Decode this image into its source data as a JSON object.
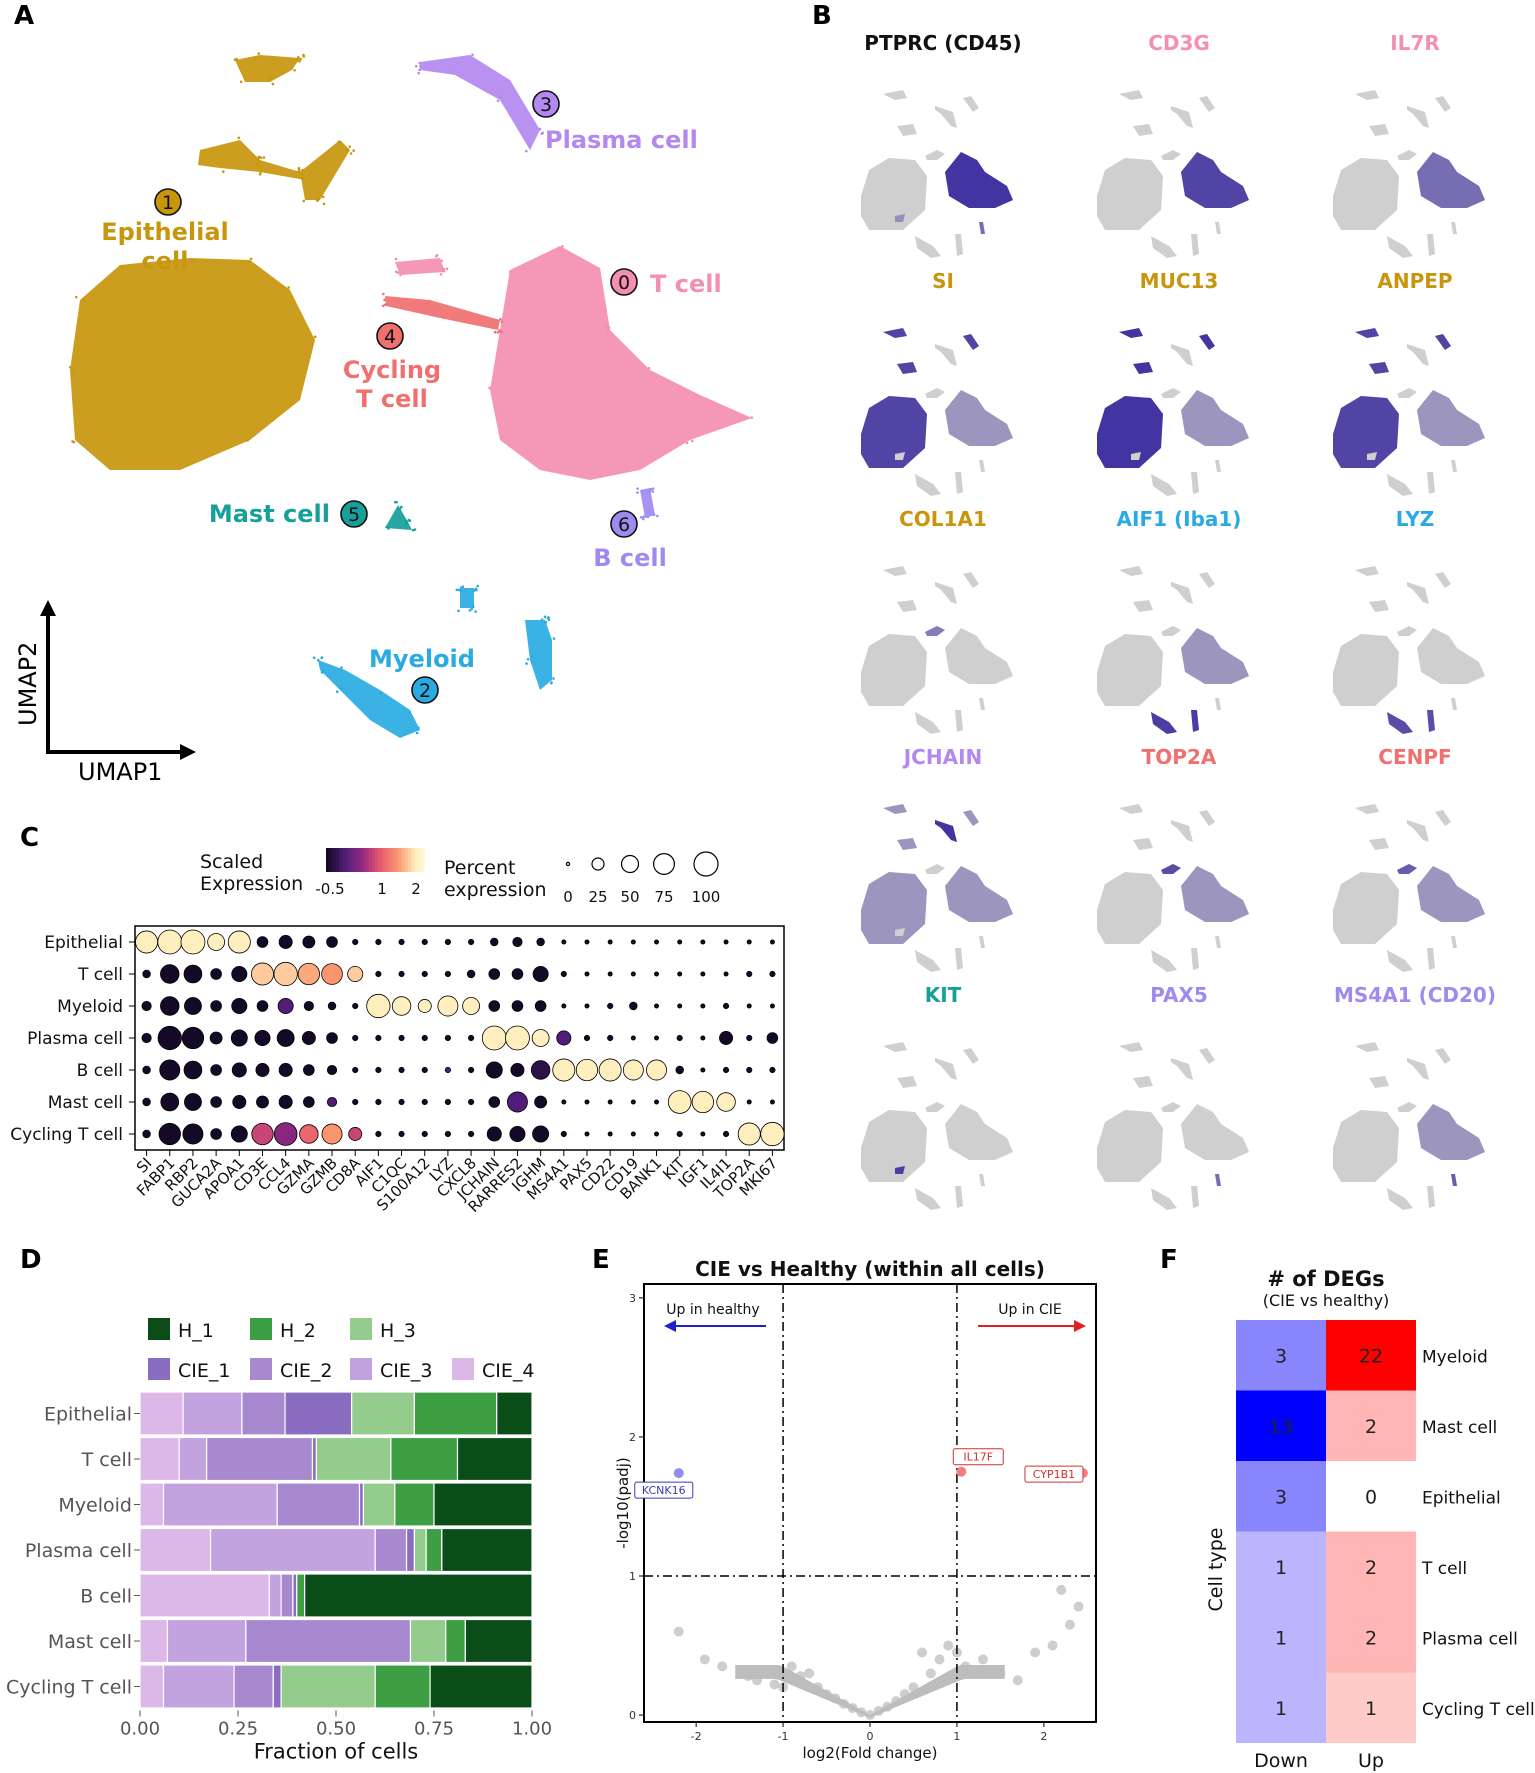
{
  "panels": {
    "A": "A",
    "B": "B",
    "C": "C",
    "D": "D",
    "E": "E",
    "F": "F"
  },
  "colors": {
    "t_cell": "#f48fb1",
    "epithelial": "#c8960c",
    "myeloid": "#29abe2",
    "plasma": "#b388f0",
    "cycling": "#f07070",
    "mast": "#16a09a",
    "b_cell": "#a08af0",
    "feature_hi": "#3b2c9e",
    "feature_bg": "#cfcfcf"
  },
  "umap": {
    "xlabel": "UMAP1",
    "ylabel": "UMAP2",
    "clusters": [
      {
        "num": "0",
        "name": "T cell",
        "color": "#f48fb1"
      },
      {
        "num": "1",
        "name": "Epithelial cell",
        "line1": "Epithelial",
        "line2": "cell",
        "color": "#c8960c"
      },
      {
        "num": "2",
        "name": "Myeloid",
        "color": "#29abe2"
      },
      {
        "num": "3",
        "name": "Plasma cell",
        "color": "#b388f0"
      },
      {
        "num": "4",
        "name": "Cycling T cell",
        "line1": "Cycling",
        "line2": "T cell",
        "color": "#f07070"
      },
      {
        "num": "5",
        "name": "Mast cell",
        "color": "#16a09a"
      },
      {
        "num": "6",
        "name": "B cell",
        "color": "#a08af0"
      }
    ]
  },
  "features": [
    {
      "gene": "PTPRC (CD45)",
      "color": "#111111",
      "hi": [
        [
          0,
          0.95
        ],
        [
          6,
          0.6
        ],
        [
          5,
          0.4
        ]
      ]
    },
    {
      "gene": "CD3G",
      "color": "#f48fb1",
      "hi": [
        [
          0,
          0.85
        ]
      ]
    },
    {
      "gene": "IL7R",
      "color": "#f48fb1",
      "hi": [
        [
          0,
          0.6
        ]
      ]
    },
    {
      "gene": "SI",
      "color": "#c8960c",
      "hi": [
        [
          1,
          0.85
        ],
        [
          0,
          0.25
        ]
      ]
    },
    {
      "gene": "MUC13",
      "color": "#c8960c",
      "hi": [
        [
          1,
          0.95
        ],
        [
          0,
          0.2
        ]
      ]
    },
    {
      "gene": "ANPEP",
      "color": "#c8960c",
      "hi": [
        [
          1,
          0.85
        ],
        [
          0,
          0.15
        ]
      ]
    },
    {
      "gene": "COL1A1",
      "color": "#c8960c",
      "hi": [
        [
          4,
          0.5
        ]
      ]
    },
    {
      "gene": "AIF1 (Iba1)",
      "color": "#29abe2",
      "hi": [
        [
          2,
          0.9
        ],
        [
          0,
          0.1
        ]
      ]
    },
    {
      "gene": "LYZ",
      "color": "#29abe2",
      "hi": [
        [
          2,
          0.8
        ]
      ]
    },
    {
      "gene": "JCHAIN",
      "color": "#b388f0",
      "hi": [
        [
          3,
          0.95
        ],
        [
          1,
          0.12
        ],
        [
          0,
          0.12
        ]
      ]
    },
    {
      "gene": "TOP2A",
      "color": "#f07070",
      "hi": [
        [
          4,
          0.8
        ],
        [
          0,
          0.08
        ]
      ]
    },
    {
      "gene": "CENPF",
      "color": "#f07070",
      "hi": [
        [
          4,
          0.7
        ],
        [
          0,
          0.08
        ]
      ]
    },
    {
      "gene": "KIT",
      "color": "#16a09a",
      "hi": [
        [
          5,
          0.9
        ]
      ]
    },
    {
      "gene": "PAX5",
      "color": "#a08af0",
      "hi": [
        [
          6,
          0.6
        ]
      ]
    },
    {
      "gene": "MS4A1 (CD20)",
      "color": "#a08af0",
      "hi": [
        [
          6,
          0.7
        ],
        [
          0,
          0.05
        ]
      ]
    }
  ],
  "chart_data": [
    {
      "panel": "C",
      "type": "dotplot",
      "rows": [
        "Epithelial",
        "T cell",
        "Myeloid",
        "Plasma cell",
        "B cell",
        "Mast cell",
        "Cycling T cell"
      ],
      "genes": [
        "SI",
        "FABP1",
        "RBP2",
        "GUCA2A",
        "APOA1",
        "CD3E",
        "CCL4",
        "GZMA",
        "GZMB",
        "CD8A",
        "AIF1",
        "C1QC",
        "S100A12",
        "LYZ",
        "CXCL8",
        "JCHAIN",
        "RARRES2",
        "IGHM",
        "MS4A1",
        "PAX5",
        "CD22",
        "CD19",
        "BANK1",
        "KIT",
        "IGF1",
        "IL4I1",
        "TOP2A",
        "MKI67"
      ],
      "pct": [
        [
          85,
          100,
          100,
          50,
          85,
          20,
          30,
          25,
          20,
          5,
          5,
          5,
          5,
          5,
          5,
          10,
          15,
          10,
          3,
          3,
          3,
          3,
          3,
          3,
          3,
          3,
          3,
          3
        ],
        [
          10,
          60,
          55,
          20,
          40,
          85,
          95,
          80,
          75,
          40,
          5,
          5,
          5,
          5,
          10,
          20,
          20,
          40,
          5,
          3,
          3,
          3,
          3,
          3,
          3,
          3,
          5,
          5
        ],
        [
          15,
          60,
          50,
          20,
          40,
          20,
          40,
          15,
          10,
          5,
          95,
          60,
          30,
          70,
          50,
          20,
          20,
          20,
          3,
          3,
          5,
          10,
          3,
          3,
          3,
          5,
          3,
          3
        ],
        [
          15,
          95,
          80,
          25,
          45,
          40,
          50,
          30,
          20,
          5,
          5,
          5,
          5,
          5,
          5,
          100,
          100,
          50,
          35,
          5,
          5,
          3,
          3,
          5,
          3,
          30,
          5,
          20
        ],
        [
          10,
          70,
          55,
          20,
          35,
          30,
          30,
          20,
          15,
          5,
          5,
          5,
          5,
          5,
          5,
          45,
          30,
          60,
          85,
          80,
          85,
          70,
          70,
          10,
          3,
          5,
          5,
          5
        ],
        [
          10,
          55,
          50,
          20,
          30,
          25,
          30,
          20,
          15,
          5,
          5,
          5,
          5,
          5,
          5,
          20,
          70,
          25,
          3,
          3,
          3,
          3,
          3,
          90,
          80,
          60,
          3,
          3
        ],
        [
          10,
          80,
          70,
          20,
          45,
          80,
          90,
          60,
          70,
          30,
          5,
          5,
          5,
          5,
          5,
          35,
          40,
          45,
          5,
          3,
          3,
          3,
          3,
          5,
          3,
          5,
          85,
          95
        ]
      ],
      "expr": [
        [
          2,
          2,
          2,
          2,
          2,
          -0.5,
          -0.5,
          -0.5,
          -0.5,
          -0.5,
          -0.5,
          -0.5,
          -0.5,
          -0.5,
          -0.5,
          -0.5,
          -0.5,
          -0.5,
          -0.5,
          -0.5,
          -0.5,
          -0.5,
          -0.5,
          -0.5,
          -0.5,
          -0.5,
          -0.5,
          -0.5
        ],
        [
          -0.5,
          -0.5,
          -0.5,
          -0.5,
          -0.5,
          1.8,
          1.8,
          1.6,
          1.5,
          1.8,
          -0.5,
          -0.5,
          -0.5,
          -0.5,
          -0.5,
          -0.5,
          -0.5,
          -0.5,
          -0.5,
          -0.5,
          -0.5,
          -0.5,
          -0.5,
          -0.5,
          -0.5,
          -0.5,
          -0.5,
          -0.5
        ],
        [
          -0.5,
          -0.5,
          -0.5,
          -0.5,
          -0.5,
          -0.5,
          0,
          -0.5,
          -0.5,
          -0.5,
          2,
          2,
          2,
          2,
          2,
          -0.5,
          -0.5,
          -0.5,
          -0.5,
          -0.5,
          -0.5,
          -0.5,
          -0.5,
          -0.5,
          -0.5,
          -0.5,
          -0.5,
          -0.5
        ],
        [
          -0.5,
          -0.5,
          -0.5,
          -0.5,
          -0.5,
          -0.5,
          -0.5,
          -0.5,
          -0.5,
          -0.5,
          -0.5,
          -0.5,
          -0.5,
          -0.5,
          -0.5,
          2,
          2,
          2,
          0,
          -0.5,
          -0.5,
          -0.5,
          -0.5,
          -0.5,
          -0.5,
          -0.5,
          -0.5,
          -0.5
        ],
        [
          -0.5,
          -0.5,
          -0.5,
          -0.5,
          -0.5,
          -0.5,
          -0.5,
          -0.5,
          -0.5,
          -0.5,
          -0.5,
          -0.5,
          -0.5,
          0,
          -0.5,
          -0.5,
          -0.5,
          -0.3,
          2,
          2,
          2,
          2,
          2,
          -0.5,
          -0.5,
          -0.5,
          -0.5,
          -0.5
        ],
        [
          -0.5,
          -0.5,
          -0.5,
          -0.5,
          -0.5,
          -0.5,
          -0.5,
          -0.5,
          0,
          -0.5,
          -0.5,
          -0.5,
          -0.5,
          -0.5,
          -0.5,
          -0.5,
          0,
          -0.5,
          -0.5,
          -0.5,
          -0.5,
          -0.5,
          -0.5,
          2,
          2,
          2,
          -0.5,
          -0.5
        ],
        [
          -0.5,
          -0.5,
          -0.5,
          -0.5,
          -0.5,
          0.8,
          0.4,
          1.1,
          1.5,
          0.8,
          -0.5,
          -0.5,
          -0.5,
          -0.5,
          -0.5,
          -0.5,
          -0.5,
          -0.5,
          -0.5,
          -0.5,
          -0.5,
          -0.5,
          -0.5,
          -0.5,
          -0.5,
          -0.5,
          2,
          2
        ]
      ],
      "colorbar": {
        "title1": "Scaled",
        "title2": "Expression",
        "ticks": [
          "-0.5",
          "1",
          "2"
        ],
        "range": [
          -0.5,
          2.2
        ]
      },
      "size_legend": {
        "title1": "Percent",
        "title2": "expression",
        "values": [
          0,
          25,
          50,
          75,
          100
        ],
        "labels": [
          "0",
          "25",
          "50",
          "75",
          "100"
        ]
      }
    },
    {
      "panel": "D",
      "type": "bar",
      "orientation": "horizontal-stacked",
      "categories": [
        "Epithelial",
        "T cell",
        "Myeloid",
        "Plasma cell",
        "B cell",
        "Mast cell",
        "Cycling T cell"
      ],
      "series": [
        {
          "name": "CIE_4",
          "color": "#dcb8e8",
          "values": [
            0.11,
            0.1,
            0.06,
            0.18,
            0.33,
            0.07,
            0.06
          ]
        },
        {
          "name": "CIE_3",
          "color": "#c2a3e0",
          "values": [
            0.15,
            0.07,
            0.29,
            0.42,
            0.03,
            0.2,
            0.18
          ]
        },
        {
          "name": "CIE_2",
          "color": "#a889d0",
          "values": [
            0.11,
            0.27,
            0.21,
            0.08,
            0.03,
            0.42,
            0.1
          ]
        },
        {
          "name": "CIE_1",
          "color": "#8a6cc0",
          "values": [
            0.17,
            0.01,
            0.01,
            0.02,
            0.01,
            0.0,
            0.02
          ]
        },
        {
          "name": "H_3",
          "color": "#93cc8c",
          "values": [
            0.16,
            0.19,
            0.08,
            0.03,
            0.0,
            0.09,
            0.24
          ]
        },
        {
          "name": "H_2",
          "color": "#3d9e44",
          "values": [
            0.21,
            0.17,
            0.1,
            0.04,
            0.02,
            0.05,
            0.14
          ]
        },
        {
          "name": "H_1",
          "color": "#0b4d18",
          "values": [
            0.09,
            0.19,
            0.25,
            0.23,
            0.58,
            0.17,
            0.26
          ]
        }
      ],
      "legend_order": [
        "H_1",
        "H_2",
        "H_3",
        "CIE_1",
        "CIE_2",
        "CIE_3",
        "CIE_4"
      ],
      "xlabel": "Fraction of cells",
      "xticks": [
        "0.00",
        "0.25",
        "0.50",
        "0.75",
        "1.00"
      ],
      "xlim": [
        0,
        1
      ]
    },
    {
      "panel": "E",
      "type": "scatter",
      "title": "CIE vs Healthy (within all cells)",
      "xlabel": "log2(Fold change)",
      "ylabel": "-log10(padj)",
      "xlim": [
        -2.6,
        2.6
      ],
      "ylim": [
        -0.05,
        3.1
      ],
      "xticks": [
        -2,
        -1,
        0,
        1,
        2
      ],
      "yticks": [
        0,
        1,
        2,
        3
      ],
      "xtick_labels": [
        "-2",
        "-1",
        "0",
        "1",
        "2"
      ],
      "ytick_labels": [
        "0",
        "1",
        "2",
        "3"
      ],
      "vlines": [
        -1,
        1
      ],
      "hline": 1,
      "arrow_left": "Up in healthy",
      "arrow_right": "Up in CIE",
      "labeled_points": [
        {
          "gene": "KCNK16",
          "x": -2.2,
          "y": 1.74,
          "color": "#8f8ff0",
          "box": "#3b3bb0"
        },
        {
          "gene": "IL17F",
          "x": 1.05,
          "y": 1.75,
          "color": "#f08080",
          "box": "#d03030"
        },
        {
          "gene": "CYP1B1",
          "x": 2.45,
          "y": 1.74,
          "color": "#f08080",
          "box": "#d03030"
        }
      ],
      "background_points": [
        [
          -2.2,
          0.6
        ],
        [
          -1.9,
          0.4
        ],
        [
          -1.7,
          0.35
        ],
        [
          -1.4,
          0.28
        ],
        [
          -1.3,
          0.25
        ],
        [
          -1.2,
          0.3
        ],
        [
          -1.1,
          0.22
        ],
        [
          -1.0,
          0.2
        ],
        [
          -0.9,
          0.35
        ],
        [
          -0.8,
          0.28
        ],
        [
          -0.7,
          0.3
        ],
        [
          -0.6,
          0.2
        ],
        [
          -0.5,
          0.15
        ],
        [
          -0.4,
          0.12
        ],
        [
          -0.3,
          0.08
        ],
        [
          -0.2,
          0.05
        ],
        [
          -0.1,
          0.02
        ],
        [
          0.0,
          0.0
        ],
        [
          0.1,
          0.03
        ],
        [
          0.2,
          0.06
        ],
        [
          0.3,
          0.1
        ],
        [
          0.4,
          0.15
        ],
        [
          0.5,
          0.2
        ],
        [
          0.6,
          0.45
        ],
        [
          0.7,
          0.3
        ],
        [
          0.8,
          0.4
        ],
        [
          0.9,
          0.5
        ],
        [
          1.0,
          0.45
        ],
        [
          1.1,
          0.35
        ],
        [
          1.2,
          0.3
        ],
        [
          1.3,
          0.4
        ],
        [
          1.5,
          0.3
        ],
        [
          1.7,
          0.25
        ],
        [
          1.9,
          0.45
        ],
        [
          2.1,
          0.5
        ],
        [
          2.3,
          0.65
        ],
        [
          2.4,
          0.78
        ],
        [
          2.2,
          0.9
        ]
      ]
    },
    {
      "panel": "F",
      "type": "heatmap",
      "title": "# of DEGs",
      "subtitle": "(CIE vs healthy)",
      "ylabel": "Cell type",
      "columns": [
        "Down",
        "Up"
      ],
      "rows": [
        "Myeloid",
        "Mast cell",
        "Epithelial",
        "T cell",
        "Plasma cell",
        "Cycling T cell"
      ],
      "values": [
        [
          3,
          22
        ],
        [
          13,
          2
        ],
        [
          3,
          0
        ],
        [
          1,
          2
        ],
        [
          1,
          2
        ],
        [
          1,
          1
        ]
      ],
      "labels": [
        [
          "3",
          "22"
        ],
        [
          "13",
          "2"
        ],
        [
          "3",
          "0"
        ],
        [
          "1",
          "2"
        ],
        [
          "1",
          "2"
        ],
        [
          "1",
          "1"
        ]
      ],
      "down_color": "#0000ff",
      "up_color": "#ff0000"
    }
  ]
}
